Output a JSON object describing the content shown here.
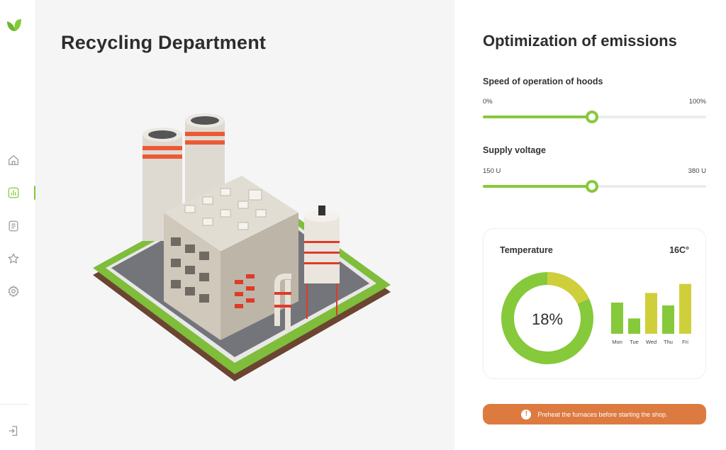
{
  "sidebar": {
    "logo_icon": "leaf-logo-icon",
    "items": [
      {
        "name": "home",
        "icon": "home-icon"
      },
      {
        "name": "analytics",
        "icon": "bar-chart-icon",
        "active": true
      },
      {
        "name": "documents",
        "icon": "document-icon"
      },
      {
        "name": "favorites",
        "icon": "star-icon"
      },
      {
        "name": "settings",
        "icon": "gear-icon"
      }
    ],
    "logout_icon": "logout-icon"
  },
  "main": {
    "title": "Recycling Department",
    "illustration": "isometric-factory-illustration"
  },
  "panel": {
    "title": "Optimization of emissions",
    "sliders": [
      {
        "label": "Speed of operation of hoods",
        "min_label": "0%",
        "max_label": "100%",
        "value_fraction": 0.49
      },
      {
        "label": "Supply voltage",
        "min_label": "150 U",
        "max_label": "380 U",
        "value_fraction": 0.49
      }
    ],
    "temperature": {
      "title": "Temperature",
      "value": "16C°",
      "percent_label": "18%",
      "donut_yellow_fraction": 0.18,
      "days": [
        "Mon",
        "Tue",
        "Wed",
        "Thu",
        "Fri"
      ],
      "bar_levels": [
        0.55,
        0.27,
        0.72,
        0.5,
        0.88
      ],
      "bar_colors": [
        "#86c93a",
        "#86c93a",
        "#cfcf3c",
        "#86c93a",
        "#cfcf3c"
      ]
    },
    "alert": {
      "text": "Preheat the furnaces before starting the shop.",
      "icon": "exclamation-icon"
    }
  },
  "colors": {
    "accent_green": "#86c93a",
    "accent_yellow": "#cfcf3c",
    "alert_orange": "#dd7a40"
  }
}
